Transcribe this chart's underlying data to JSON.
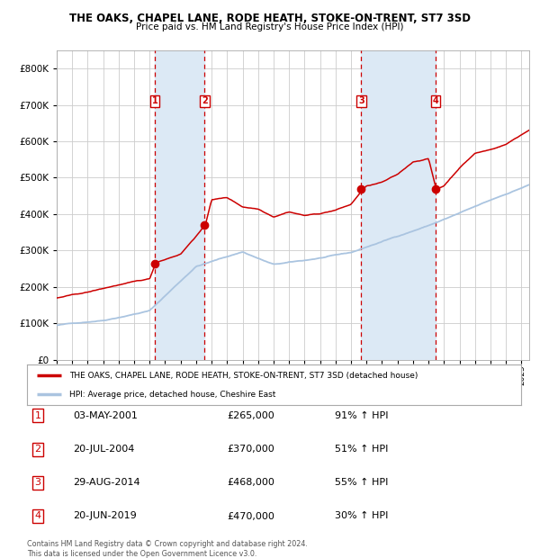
{
  "title": "THE OAKS, CHAPEL LANE, RODE HEATH, STOKE-ON-TRENT, ST7 3SD",
  "subtitle": "Price paid vs. HM Land Registry's House Price Index (HPI)",
  "hpi_label": "HPI: Average price, detached house, Cheshire East",
  "property_label": "THE OAKS, CHAPEL LANE, RODE HEATH, STOKE-ON-TRENT, ST7 3SD (detached house)",
  "footer": "Contains HM Land Registry data © Crown copyright and database right 2024.\nThis data is licensed under the Open Government Licence v3.0.",
  "sales": [
    {
      "num": 1,
      "date": "03-MAY-2001",
      "price": 265000,
      "pct": "91%",
      "year": 2001.34
    },
    {
      "num": 2,
      "date": "20-JUL-2004",
      "price": 370000,
      "pct": "51%",
      "year": 2004.55
    },
    {
      "num": 3,
      "date": "29-AUG-2014",
      "price": 468000,
      "pct": "55%",
      "year": 2014.66
    },
    {
      "num": 4,
      "date": "20-JUN-2019",
      "price": 470000,
      "pct": "30%",
      "year": 2019.47
    }
  ],
  "ylim": [
    0,
    850000
  ],
  "xlim_start": 1995.0,
  "xlim_end": 2025.5,
  "background_color": "#ffffff",
  "grid_color": "#cccccc",
  "hpi_color": "#aac4e0",
  "property_color": "#cc0000",
  "sale_dot_color": "#cc0000",
  "dashed_line_color": "#cc0000",
  "shade_color": "#dce9f5",
  "label_box_color": "#cc0000"
}
